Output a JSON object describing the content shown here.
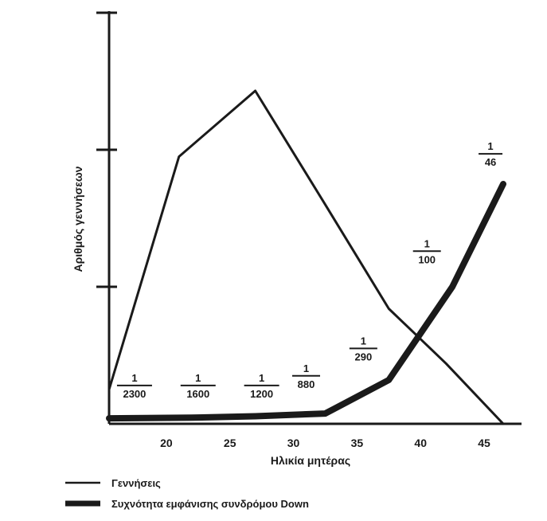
{
  "chart_data": {
    "type": "line",
    "title": "",
    "xlabel": "Ηλικία μητέρας",
    "ylabel": "Αριθμός γεννήσεων",
    "xlim": [
      15.5,
      47
    ],
    "ylim": [
      0,
      3
    ],
    "xticks": [
      20,
      25,
      30,
      35,
      40,
      45
    ],
    "ytick_marks": [
      1,
      2,
      3
    ],
    "series": [
      {
        "name": "Γεννήσεις",
        "style": "thin",
        "x": [
          15.5,
          21,
          27,
          32.5,
          37.5,
          42,
          46.5
        ],
        "y": [
          0.25,
          1.95,
          2.43,
          1.6,
          0.84,
          0.44,
          0.0
        ]
      },
      {
        "name": "Συχνότητα εμφάνισης συνδρόμου Down",
        "style": "thick",
        "x": [
          15.5,
          22,
          27,
          32.5,
          37.5,
          42.5,
          46.5
        ],
        "y": [
          0.04,
          0.045,
          0.055,
          0.075,
          0.32,
          1.0,
          1.75
        ]
      }
    ],
    "annotations": [
      {
        "numerator": "1",
        "denominator": "2300",
        "x": 17.5,
        "y": 0.28
      },
      {
        "numerator": "1",
        "denominator": "1600",
        "x": 22.5,
        "y": 0.28
      },
      {
        "numerator": "1",
        "denominator": "1200",
        "x": 27.5,
        "y": 0.28
      },
      {
        "numerator": "1",
        "denominator": "880",
        "x": 31,
        "y": 0.35
      },
      {
        "numerator": "1",
        "denominator": "290",
        "x": 35.5,
        "y": 0.55
      },
      {
        "numerator": "1",
        "denominator": "100",
        "x": 40.5,
        "y": 1.26
      },
      {
        "numerator": "1",
        "denominator": "46",
        "x": 45.5,
        "y": 1.97
      }
    ],
    "legend": [
      {
        "label": "Γεννήσεις",
        "style": "thin"
      },
      {
        "label": "Συχνότητα εμφάνισης συνδρόμου Down",
        "style": "thick"
      }
    ],
    "legend_position": "bottom-left",
    "grid": false
  },
  "colors": {
    "ink": "#1a1a1a",
    "background": "#ffffff"
  }
}
